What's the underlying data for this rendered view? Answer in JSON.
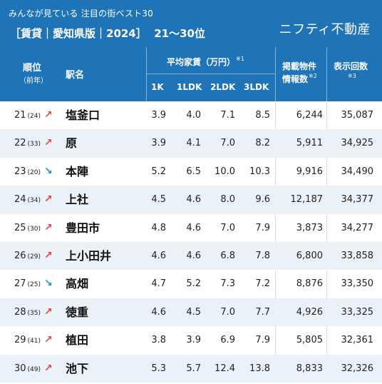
{
  "header": {
    "subtitle": "みんなが見ている 注目の街ベスト30",
    "title": "［賃貸｜愛知県版｜2024］  21〜30位",
    "brand": "ニフティ不動産"
  },
  "colors": {
    "primary": "#1f73b7",
    "stripe": "#eaf1f7",
    "up": "#e04a3f",
    "down": "#1f8ed0"
  },
  "columns": {
    "rank": "順位",
    "rank_sub": "（前年）",
    "station": "駅名",
    "rent_group": "平均家賃（万円）",
    "rent_note": "※1",
    "k1": "1K",
    "ldk1": "1LDK",
    "ldk2": "2LDK",
    "ldk3": "3LDK",
    "info_l1": "掲載物件",
    "info_l2": "情報数",
    "info_note": "※2",
    "views": "表示回数",
    "views_note": "※3"
  },
  "rows": [
    {
      "rank": "21",
      "prev": "(24)",
      "trend": "up",
      "arrow": "↗",
      "station": "塩釜口",
      "k1": "3.9",
      "ldk1": "4.0",
      "ldk2": "7.1",
      "ldk3": "8.5",
      "info": "6,244",
      "views": "35,087"
    },
    {
      "rank": "22",
      "prev": "(33)",
      "trend": "up",
      "arrow": "↗",
      "station": "原",
      "k1": "3.9",
      "ldk1": "4.1",
      "ldk2": "7.0",
      "ldk3": "8.2",
      "info": "5,911",
      "views": "34,925"
    },
    {
      "rank": "23",
      "prev": "(20)",
      "trend": "down",
      "arrow": "↘",
      "station": "本陣",
      "k1": "5.2",
      "ldk1": "6.5",
      "ldk2": "10.0",
      "ldk3": "10.3",
      "info": "9,916",
      "views": "34,490"
    },
    {
      "rank": "24",
      "prev": "(34)",
      "trend": "up",
      "arrow": "↗",
      "station": "上社",
      "k1": "4.5",
      "ldk1": "4.6",
      "ldk2": "8.0",
      "ldk3": "9.6",
      "info": "12,187",
      "views": "34,377"
    },
    {
      "rank": "25",
      "prev": "(30)",
      "trend": "up",
      "arrow": "↗",
      "station": "豊田市",
      "k1": "4.8",
      "ldk1": "4.6",
      "ldk2": "7.0",
      "ldk3": "7.9",
      "info": "3,873",
      "views": "34,277"
    },
    {
      "rank": "26",
      "prev": "(29)",
      "trend": "up",
      "arrow": "↗",
      "station": "上小田井",
      "k1": "4.6",
      "ldk1": "4.6",
      "ldk2": "6.8",
      "ldk3": "7.8",
      "info": "6,800",
      "views": "33,858"
    },
    {
      "rank": "27",
      "prev": "(25)",
      "trend": "down",
      "arrow": "↘",
      "station": "高畑",
      "k1": "4.7",
      "ldk1": "5.2",
      "ldk2": "7.3",
      "ldk3": "7.2",
      "info": "8,876",
      "views": "33,350"
    },
    {
      "rank": "28",
      "prev": "(35)",
      "trend": "up",
      "arrow": "↗",
      "station": "徳重",
      "k1": "4.6",
      "ldk1": "4.5",
      "ldk2": "7.0",
      "ldk3": "7.7",
      "info": "4,926",
      "views": "33,325"
    },
    {
      "rank": "29",
      "prev": "(41)",
      "trend": "up",
      "arrow": "↗",
      "station": "植田",
      "k1": "3.8",
      "ldk1": "3.9",
      "ldk2": "6.9",
      "ldk3": "7.9",
      "info": "5,805",
      "views": "32,361"
    },
    {
      "rank": "30",
      "prev": "(49)",
      "trend": "up",
      "arrow": "↗",
      "station": "池下",
      "k1": "5.3",
      "ldk1": "5.7",
      "ldk2": "12.4",
      "ldk3": "13.8",
      "info": "8,833",
      "views": "32,326"
    }
  ]
}
